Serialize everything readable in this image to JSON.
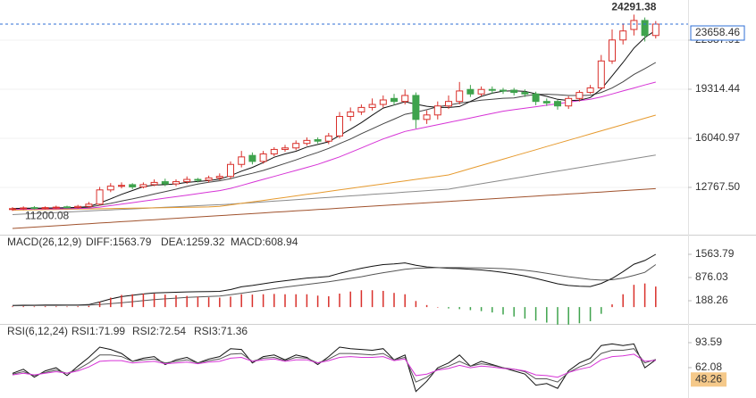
{
  "chart_data": [
    {
      "type": "candlestick",
      "ylim": [
        9672,
        25266
      ],
      "yticks": [
        22587.91,
        19314.44,
        16040.97,
        {
          "value": 12767.5,
          "label": "12767.50"
        }
      ],
      "grid": true,
      "up_color": "#d9302b",
      "down_color": "#3fa34d",
      "annotations": {
        "high": 24291.38,
        "low": 11200.08,
        "last": 23658.46
      },
      "last_color": "#2f6fd6",
      "open": [
        11300,
        11350,
        11420,
        11380,
        11420,
        11470,
        11430,
        11500,
        11650,
        12600,
        12850,
        12950,
        12800,
        12950,
        13150,
        13000,
        13150,
        13300,
        13250,
        13400,
        13500,
        14300,
        14900,
        14500,
        15000,
        15300,
        15400,
        15700,
        15950,
        15850,
        16200,
        17500,
        17800,
        18100,
        18300,
        18700,
        18500,
        18900,
        17300,
        17600,
        18200,
        18500,
        19300,
        19000,
        19300,
        19250,
        19250,
        19100,
        19000,
        18500,
        18500,
        18200,
        18700,
        19100,
        19400,
        21200,
        22600,
        23300,
        23900,
        22900
      ],
      "high": [
        11450,
        11500,
        11520,
        11500,
        11550,
        11550,
        11600,
        11800,
        12800,
        13050,
        13100,
        13050,
        13100,
        13300,
        13350,
        13300,
        13500,
        13400,
        13550,
        13700,
        14500,
        15200,
        15100,
        15200,
        15450,
        15600,
        15900,
        16100,
        16100,
        16400,
        17800,
        18100,
        18300,
        18700,
        18900,
        19000,
        19300,
        19100,
        17900,
        18500,
        18900,
        19800,
        19600,
        19500,
        19500,
        19400,
        19400,
        19300,
        19150,
        18700,
        18600,
        18850,
        19250,
        19600,
        21600,
        23300,
        23700,
        24291.38,
        24100,
        23860
      ],
      "low": [
        11200.08,
        11250,
        11300,
        11300,
        11330,
        11350,
        11350,
        11420,
        11550,
        12450,
        12700,
        12650,
        12700,
        12850,
        12850,
        12850,
        13000,
        13100,
        13100,
        13250,
        13350,
        14100,
        14300,
        14350,
        14850,
        15150,
        15250,
        15550,
        15700,
        15650,
        16050,
        17200,
        17600,
        17900,
        18100,
        18250,
        18300,
        16700,
        17000,
        17300,
        18000,
        18300,
        18800,
        18850,
        19000,
        19000,
        18900,
        18800,
        18250,
        18200,
        17950,
        18000,
        18500,
        19000,
        19300,
        21000,
        22300,
        22900,
        22500,
        22700
      ],
      "close": [
        11350,
        11400,
        11380,
        11420,
        11450,
        11430,
        11500,
        11650,
        12600,
        12850,
        12900,
        12800,
        12950,
        13100,
        13000,
        13150,
        13300,
        13250,
        13400,
        13500,
        14300,
        14800,
        14500,
        15000,
        15300,
        15400,
        15700,
        15900,
        15850,
        16200,
        17500,
        17800,
        18100,
        18300,
        18600,
        18500,
        18900,
        17300,
        17600,
        18200,
        18500,
        19200,
        19000,
        19300,
        19250,
        19200,
        19100,
        19000,
        18500,
        18400,
        18200,
        18700,
        19100,
        19400,
        21200,
        22600,
        23200,
        23900,
        22900,
        23658.46
      ],
      "series": [
        {
          "color": "#a0522d",
          "values": [
            10030,
            10075,
            10120,
            10165,
            10210,
            10255,
            10300,
            10345,
            10390,
            10435,
            10480,
            10525,
            10570,
            10615,
            10660,
            10705,
            10750,
            10795,
            10840,
            10885,
            10930,
            10975,
            11020,
            11065,
            11110,
            11155,
            11200,
            11245,
            11290,
            11335,
            11380,
            11425,
            11470,
            11515,
            11560,
            11605,
            11650,
            11695,
            11740,
            11785,
            11830,
            11875,
            11920,
            11965,
            12010,
            12055,
            12100,
            12145,
            12190,
            12235,
            12280,
            12325,
            12370,
            12415,
            12460,
            12505,
            12550,
            12595,
            12640,
            12685
          ]
        },
        {
          "color": "#8a8a8a",
          "values": [
            10950,
            10985,
            11020,
            11055,
            11090,
            11125,
            11160,
            11195,
            11230,
            11265,
            11300,
            11335,
            11370,
            11405,
            11440,
            11475,
            11510,
            11545,
            11580,
            11615,
            11650,
            11700,
            11750,
            11800,
            11850,
            11900,
            11950,
            12000,
            12050,
            12100,
            12150,
            12200,
            12250,
            12300,
            12350,
            12400,
            12450,
            12500,
            12550,
            12600,
            12650,
            12770,
            12890,
            13010,
            13130,
            13250,
            13370,
            13490,
            13610,
            13730,
            13850,
            13970,
            14090,
            14210,
            14330,
            14450,
            14570,
            14690,
            14810,
            14930
          ]
        },
        {
          "color": "#e69a2e",
          "values": [
            11250,
            11262,
            11274,
            11286,
            11298,
            11310,
            11322,
            11334,
            11346,
            11358,
            11370,
            11382,
            11394,
            11406,
            11418,
            11430,
            11442,
            11454,
            11466,
            11500,
            11600,
            11700,
            11800,
            11900,
            12000,
            12100,
            12200,
            12300,
            12400,
            12500,
            12600,
            12700,
            12800,
            12900,
            13000,
            13100,
            13200,
            13300,
            13400,
            13500,
            13600,
            13810,
            14020,
            14230,
            14440,
            14650,
            14860,
            15070,
            15280,
            15490,
            15700,
            15910,
            16120,
            16330,
            16540,
            16750,
            16960,
            17170,
            17380,
            17590
          ]
        },
        {
          "color": "#d633d6",
          "values": [
            11300,
            11310,
            11320,
            11330,
            11340,
            11350,
            11360,
            11380,
            11450,
            11550,
            11650,
            11750,
            11850,
            11950,
            12050,
            12150,
            12250,
            12350,
            12450,
            12550,
            12700,
            12900,
            13100,
            13300,
            13500,
            13700,
            13900,
            14100,
            14300,
            14550,
            14800,
            15100,
            15400,
            15700,
            16000,
            16250,
            16500,
            16650,
            16800,
            16950,
            17100,
            17250,
            17400,
            17550,
            17700,
            17850,
            17950,
            18050,
            18150,
            18250,
            18350,
            18450,
            18550,
            18650,
            18800,
            19000,
            19200,
            19400,
            19600,
            19790
          ]
        },
        {
          "color": "#444444",
          "values": [
            11350,
            11375,
            11377,
            11388,
            11400,
            11405,
            11418,
            11448,
            11576,
            11703,
            11858,
            12000,
            12157,
            12325,
            12480,
            12650,
            12830,
            12990,
            13110,
            13210,
            13350,
            13540,
            13710,
            13900,
            14130,
            14360,
            14600,
            14860,
            15100,
            15370,
            15690,
            15990,
            16350,
            16680,
            17010,
            17320,
            17640,
            17780,
            17950,
            18150,
            18250,
            18390,
            18480,
            18580,
            18640,
            18710,
            18730,
            18870,
            18960,
            18980,
            18950,
            18900,
            18900,
            18910,
            19100,
            19400,
            19810,
            20300,
            20690,
            21100
          ]
        },
        {
          "color": "#111111",
          "values": [
            11350,
            11375,
            11377,
            11388,
            11400,
            11416,
            11436,
            11490,
            11726,
            12006,
            12300,
            12560,
            12820,
            12920,
            12950,
            13000,
            13100,
            13160,
            13220,
            13320,
            13550,
            13850,
            14100,
            14420,
            14780,
            15000,
            15180,
            15460,
            15630,
            15810,
            16230,
            16650,
            17090,
            17580,
            18060,
            18260,
            18480,
            18320,
            18180,
            18100,
            18100,
            18160,
            18500,
            18840,
            19050,
            19190,
            19210,
            19170,
            19010,
            18840,
            18640,
            18560,
            18580,
            18760,
            19320,
            20200,
            21100,
            22060,
            22760,
            23250
          ]
        }
      ]
    },
    {
      "type": "macd",
      "title": "MACD(26,12,9)",
      "ylim": [
        -473,
        1828
      ],
      "yticks": [
        1563.79,
        876.03,
        188.26
      ],
      "series": [
        {
          "name": "DIFF:1563.79",
          "color": "#111111",
          "values": [
            50,
            55,
            55,
            60,
            60,
            60,
            65,
            75,
            150,
            240,
            310,
            350,
            390,
            420,
            430,
            440,
            450,
            455,
            460,
            465,
            520,
            600,
            640,
            690,
            740,
            780,
            820,
            860,
            880,
            910,
            1000,
            1080,
            1150,
            1210,
            1260,
            1280,
            1310,
            1240,
            1190,
            1170,
            1150,
            1140,
            1120,
            1100,
            1070,
            1030,
            980,
            920,
            850,
            770,
            690,
            640,
            620,
            610,
            700,
            850,
            1050,
            1270,
            1380,
            1563.79
          ]
        },
        {
          "name": "DEA:1259.32",
          "color": "#555555",
          "values": [
            40,
            43,
            45,
            48,
            50,
            52,
            54,
            58,
            75,
            100,
            130,
            160,
            190,
            220,
            245,
            265,
            285,
            300,
            315,
            325,
            365,
            410,
            455,
            500,
            545,
            590,
            630,
            670,
            710,
            750,
            800,
            850,
            900,
            960,
            1020,
            1070,
            1120,
            1150,
            1160,
            1170,
            1170,
            1170,
            1165,
            1160,
            1150,
            1140,
            1120,
            1090,
            1050,
            1000,
            950,
            900,
            860,
            820,
            800,
            810,
            860,
            940,
            1030,
            1259.32
          ]
        },
        {
          "name": "MACD:608.94",
          "color": "#cc33cc",
          "kind": "bar",
          "up_color": "#d9302b",
          "down_color": "#3fa34d",
          "values": [
            20,
            24,
            20,
            24,
            20,
            16,
            22,
            34,
            150,
            280,
            360,
            380,
            400,
            400,
            370,
            350,
            330,
            310,
            290,
            280,
            310,
            380,
            370,
            380,
            390,
            380,
            380,
            380,
            340,
            320,
            400,
            460,
            500,
            500,
            480,
            420,
            380,
            180,
            60,
            0,
            -40,
            -60,
            -90,
            -120,
            -160,
            -220,
            -280,
            -340,
            -400,
            -460,
            -520,
            -520,
            -480,
            -420,
            -200,
            80,
            380,
            660,
            700,
            608.94
          ]
        }
      ]
    },
    {
      "type": "rsi",
      "title": "RSI(6,12,24)",
      "ylim": [
        23.8,
        103.7
      ],
      "yticks": [
        93.59,
        62.08
      ],
      "marker": 48.26,
      "marker_color": "#f5c98a",
      "series": [
        {
          "name": "RSI1:71.99",
          "color": "#111111",
          "values": [
            55,
            60,
            50,
            58,
            62,
            52,
            64,
            75,
            88,
            85,
            80,
            70,
            74,
            76,
            66,
            72,
            75,
            68,
            73,
            76,
            86,
            85,
            68,
            76,
            78,
            72,
            78,
            75,
            66,
            76,
            88,
            86,
            85,
            84,
            86,
            72,
            78,
            32,
            45,
            62,
            68,
            78,
            64,
            70,
            66,
            62,
            58,
            54,
            40,
            42,
            36,
            58,
            68,
            74,
            90,
            92,
            90,
            92,
            62,
            71.99
          ]
        },
        {
          "name": "RSI2:72.54",
          "color": "#555555",
          "values": [
            54,
            57,
            52,
            56,
            59,
            55,
            60,
            68,
            78,
            78,
            76,
            70,
            72,
            73,
            68,
            70,
            72,
            68,
            71,
            73,
            79,
            80,
            70,
            74,
            75,
            71,
            75,
            74,
            68,
            73,
            80,
            80,
            79,
            78,
            80,
            72,
            75,
            44,
            50,
            60,
            64,
            70,
            64,
            67,
            65,
            62,
            60,
            57,
            48,
            48,
            44,
            56,
            63,
            68,
            80,
            84,
            84,
            86,
            68,
            72.54
          ]
        },
        {
          "name": "RSI3:71.36",
          "color": "#d633d6",
          "values": [
            53,
            55,
            53,
            55,
            57,
            55,
            58,
            63,
            70,
            71,
            71,
            68,
            69,
            70,
            67,
            68,
            69,
            67,
            69,
            70,
            74,
            75,
            70,
            72,
            73,
            70,
            72,
            72,
            68,
            71,
            75,
            76,
            75,
            75,
            76,
            71,
            73,
            52,
            54,
            59,
            61,
            65,
            62,
            64,
            63,
            61,
            60,
            58,
            53,
            52,
            50,
            56,
            60,
            63,
            72,
            76,
            77,
            79,
            70,
            71.36
          ]
        }
      ]
    }
  ]
}
